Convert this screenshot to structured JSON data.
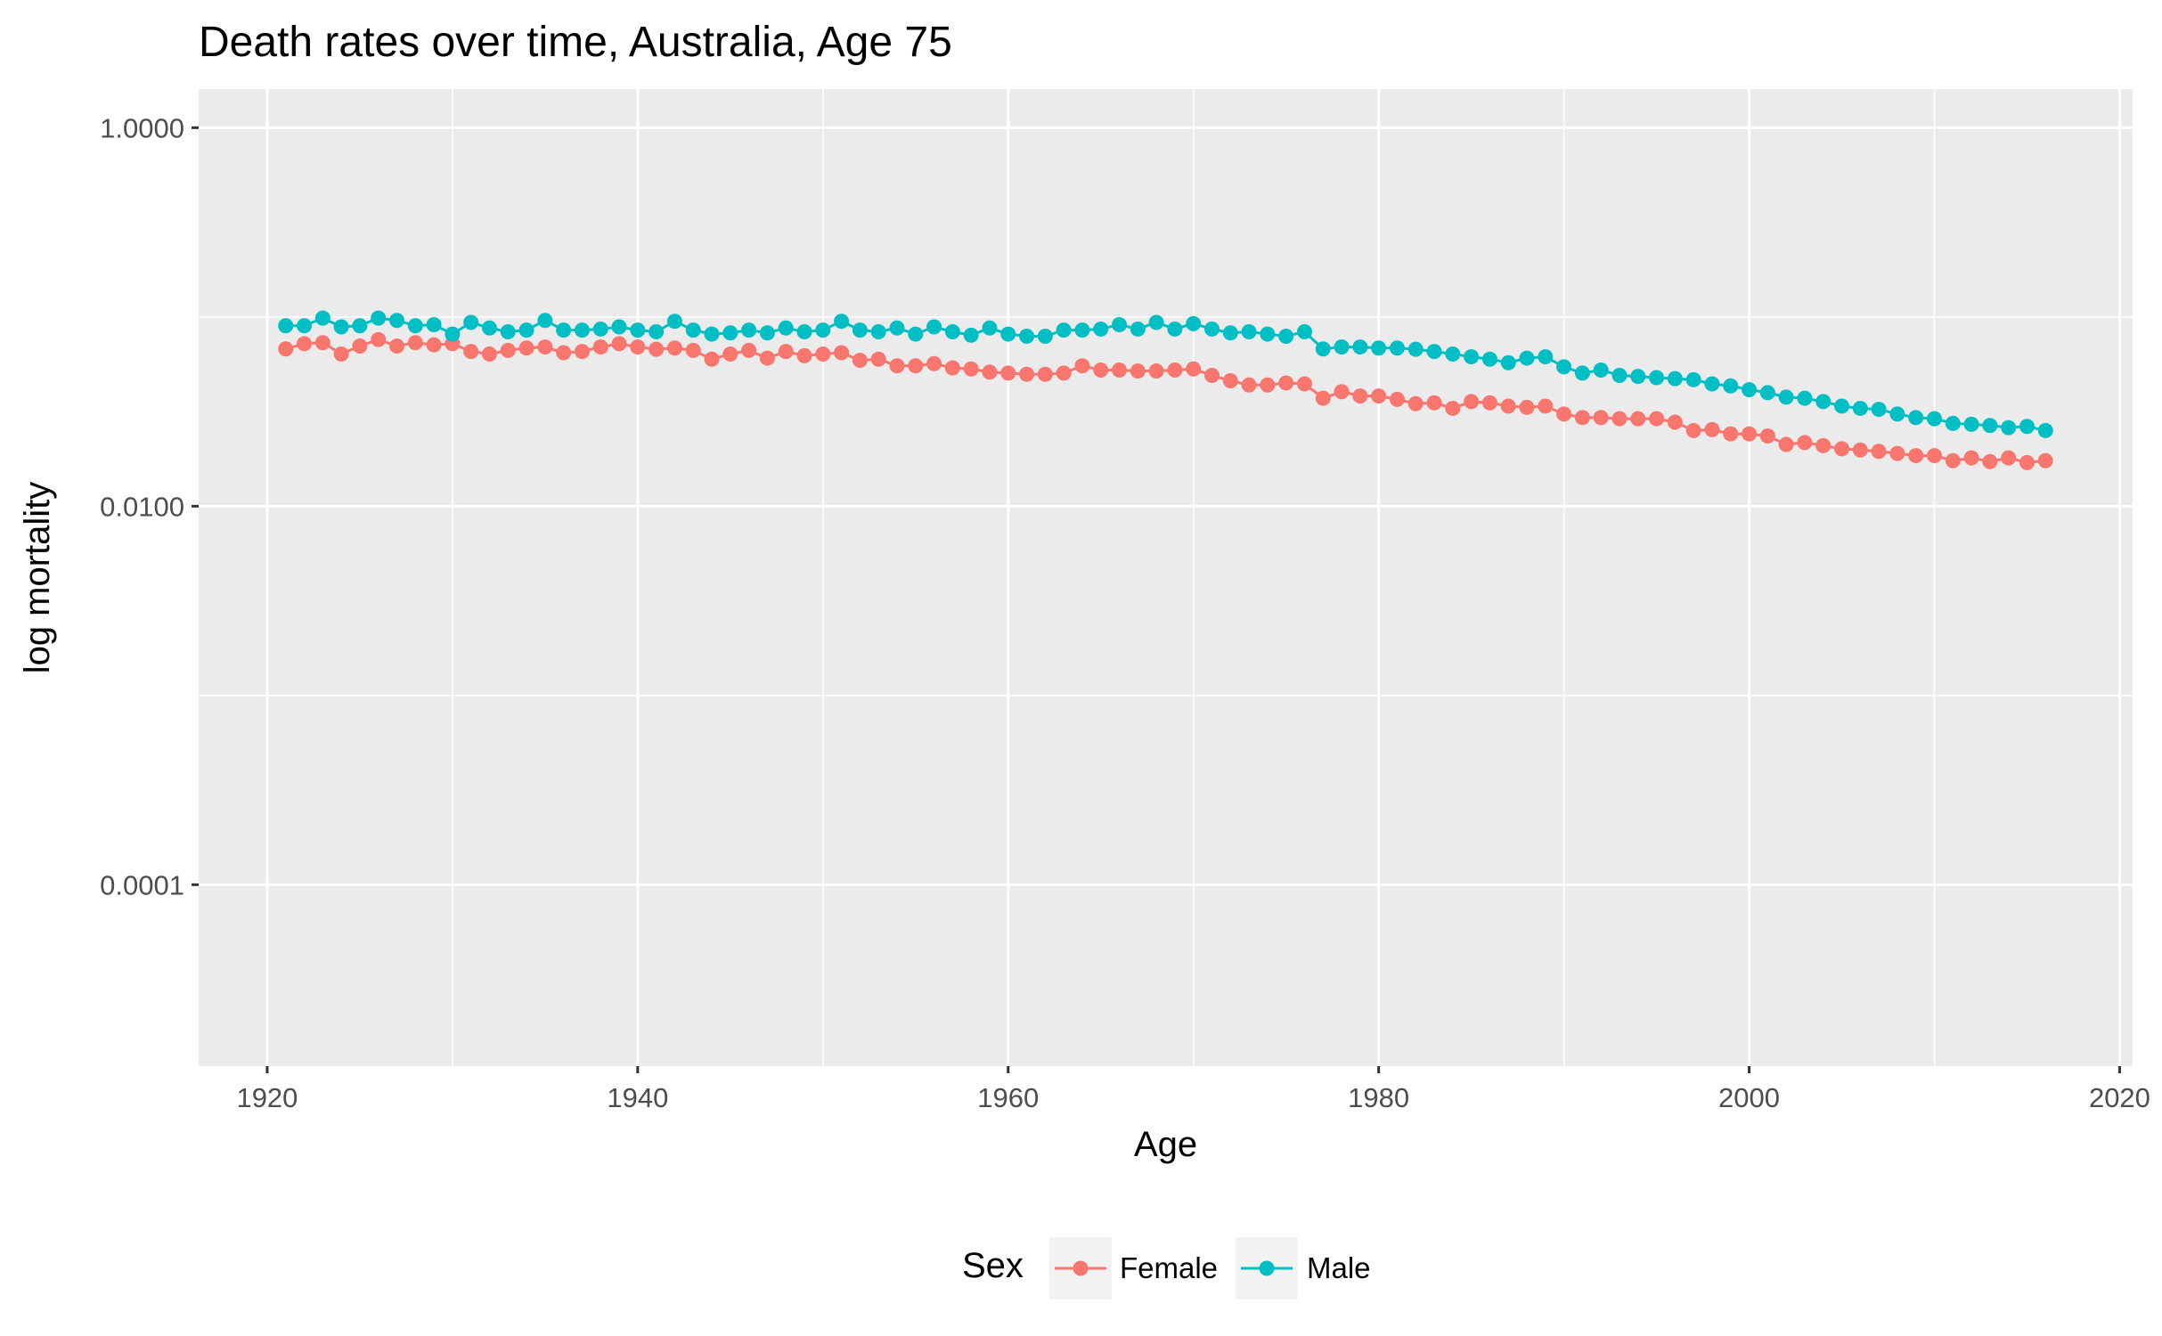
{
  "chart_data": {
    "type": "line",
    "title": "Death rates over time, Australia, Age 75",
    "xlabel": "Age",
    "ylabel": "log mortality",
    "y_scale": "log10",
    "xlim": [
      1916.3,
      2020.7
    ],
    "ylim": [
      1.1e-05,
      1.6
    ],
    "x_ticks": [
      "1920",
      "1940",
      "1960",
      "1980",
      "2000",
      "2020"
    ],
    "y_ticks": [
      "1.0000",
      "0.0100",
      "0.0001"
    ],
    "grid": true,
    "legend": {
      "title": "Sex",
      "position": "bottom"
    },
    "x": [
      1921,
      1922,
      1923,
      1924,
      1925,
      1926,
      1927,
      1928,
      1929,
      1930,
      1931,
      1932,
      1933,
      1934,
      1935,
      1936,
      1937,
      1938,
      1939,
      1940,
      1941,
      1942,
      1943,
      1944,
      1945,
      1946,
      1947,
      1948,
      1949,
      1950,
      1951,
      1952,
      1953,
      1954,
      1955,
      1956,
      1957,
      1958,
      1959,
      1960,
      1961,
      1962,
      1963,
      1964,
      1965,
      1966,
      1967,
      1968,
      1969,
      1970,
      1971,
      1972,
      1973,
      1974,
      1975,
      1976,
      1977,
      1978,
      1979,
      1980,
      1981,
      1982,
      1983,
      1984,
      1985,
      1986,
      1987,
      1988,
      1989,
      1990,
      1991,
      1992,
      1993,
      1994,
      1995,
      1996,
      1997,
      1998,
      1999,
      2000,
      2001,
      2002,
      2003,
      2004,
      2005,
      2006,
      2007,
      2008,
      2009,
      2010,
      2011,
      2012,
      2013,
      2014,
      2015,
      2016
    ],
    "series": [
      {
        "name": "Female",
        "color": "#F8766D",
        "values": [
          0.0678,
          0.0722,
          0.0731,
          0.0637,
          0.0702,
          0.0759,
          0.0702,
          0.0731,
          0.0712,
          0.0722,
          0.0657,
          0.0637,
          0.0666,
          0.0685,
          0.0694,
          0.0647,
          0.0657,
          0.0694,
          0.0722,
          0.0694,
          0.0675,
          0.0685,
          0.0666,
          0.0598,
          0.0637,
          0.0666,
          0.0606,
          0.0657,
          0.0624,
          0.0637,
          0.0647,
          0.059,
          0.0598,
          0.0552,
          0.0552,
          0.0567,
          0.0538,
          0.0531,
          0.0511,
          0.0505,
          0.0498,
          0.0498,
          0.0505,
          0.0552,
          0.0524,
          0.0524,
          0.0518,
          0.0518,
          0.0524,
          0.0531,
          0.0491,
          0.046,
          0.0437,
          0.0437,
          0.0448,
          0.0443,
          0.0372,
          0.0403,
          0.0382,
          0.0382,
          0.0367,
          0.0348,
          0.0352,
          0.0329,
          0.0357,
          0.0352,
          0.0338,
          0.0333,
          0.0338,
          0.0307,
          0.0294,
          0.0294,
          0.029,
          0.029,
          0.029,
          0.0278,
          0.0251,
          0.0254,
          0.0241,
          0.0241,
          0.0235,
          0.0212,
          0.0217,
          0.0209,
          0.0201,
          0.0198,
          0.0195,
          0.019,
          0.0185,
          0.0185,
          0.0174,
          0.018,
          0.0172,
          0.018,
          0.017,
          0.0174
        ]
      },
      {
        "name": "Male",
        "color": "#00BFC4",
        "values": [
          0.0898,
          0.0898,
          0.0986,
          0.0886,
          0.0898,
          0.0986,
          0.0959,
          0.0898,
          0.091,
          0.0812,
          0.0936,
          0.0874,
          0.0835,
          0.0852,
          0.0959,
          0.0852,
          0.0852,
          0.0863,
          0.0886,
          0.0852,
          0.0835,
          0.0949,
          0.0852,
          0.0812,
          0.0824,
          0.0852,
          0.0824,
          0.0874,
          0.0835,
          0.0852,
          0.0949,
          0.0852,
          0.0835,
          0.0874,
          0.0812,
          0.0886,
          0.0835,
          0.0801,
          0.0874,
          0.0812,
          0.0791,
          0.0791,
          0.0852,
          0.0852,
          0.0863,
          0.091,
          0.0863,
          0.0936,
          0.0863,
          0.0922,
          0.0863,
          0.0824,
          0.0835,
          0.0812,
          0.0791,
          0.0835,
          0.0678,
          0.0694,
          0.0694,
          0.0685,
          0.0685,
          0.0675,
          0.0657,
          0.0637,
          0.0616,
          0.0598,
          0.0573,
          0.0606,
          0.0616,
          0.0545,
          0.0505,
          0.0524,
          0.0491,
          0.0485,
          0.0478,
          0.0472,
          0.0466,
          0.0443,
          0.0432,
          0.0413,
          0.0398,
          0.0377,
          0.0372,
          0.0357,
          0.0338,
          0.0329,
          0.0325,
          0.0307,
          0.0294,
          0.029,
          0.0274,
          0.0271,
          0.0267,
          0.026,
          0.0264,
          0.0251
        ]
      }
    ]
  }
}
